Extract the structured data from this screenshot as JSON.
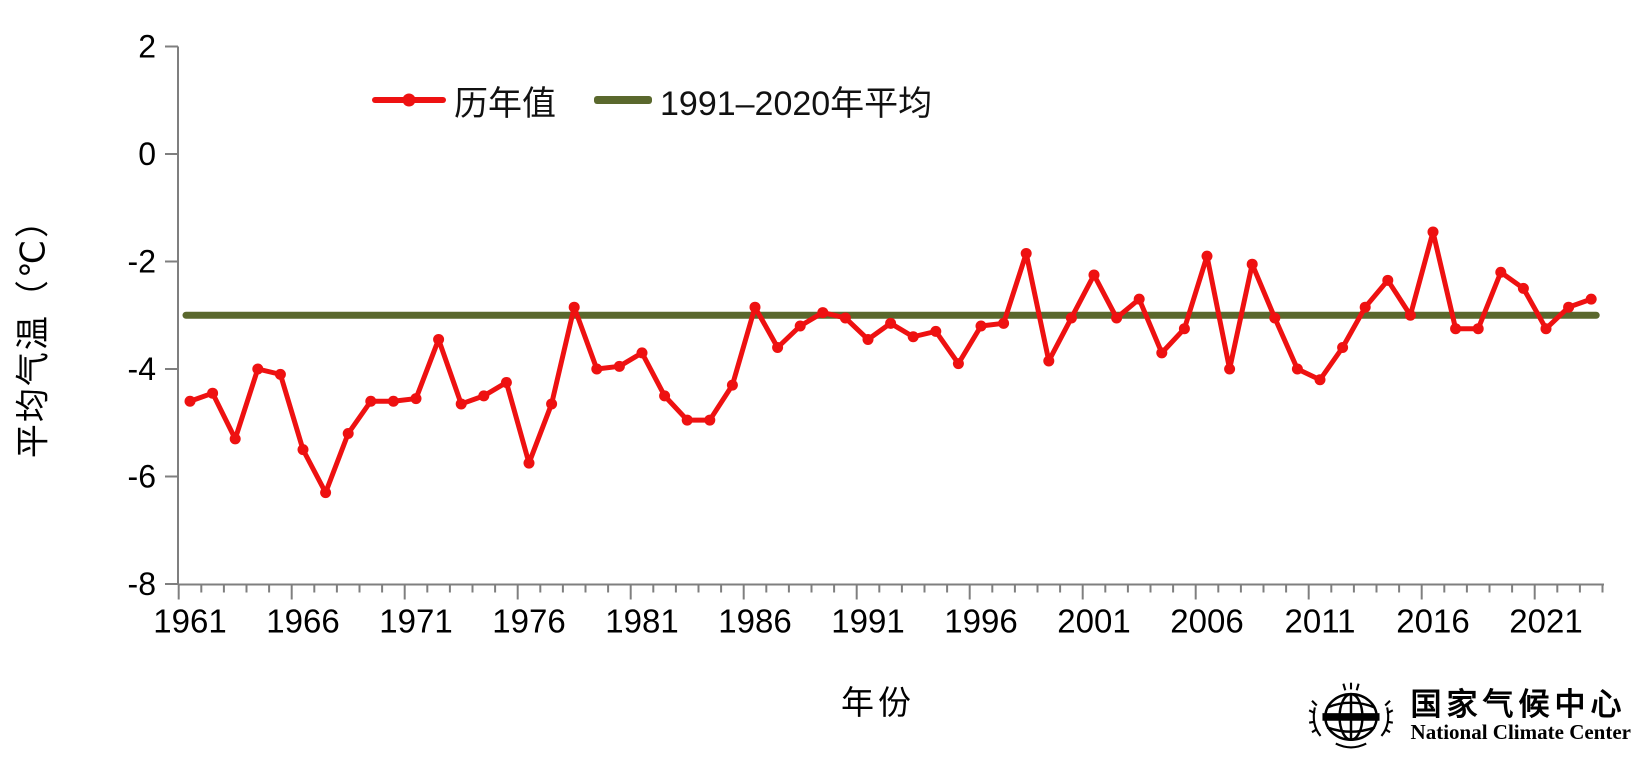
{
  "legend": {
    "annual_label": "历年值",
    "mean_label": "1991–2020年平均"
  },
  "axes": {
    "y_title": "平均气温（℃）",
    "x_title": "年份",
    "y_tick_labels": [
      "2",
      "0",
      "-2",
      "-4",
      "-6",
      "-8"
    ],
    "x_tick_labels": [
      "1961",
      "1966",
      "1971",
      "1976",
      "1981",
      "1986",
      "1991",
      "1996",
      "2001",
      "2006",
      "2011",
      "2016",
      "2021"
    ]
  },
  "footer": {
    "logo_cn": "国家气候中心",
    "logo_en": "National Climate Center"
  },
  "colors": {
    "series_red": "#ee1111",
    "mean_green": "#5a682d",
    "axis_gray": "#7f7f7f",
    "text_black": "#000000"
  },
  "chart_data": {
    "type": "line",
    "title": "",
    "xlabel": "年份",
    "ylabel": "平均气温（℃）",
    "xlim": [
      1961,
      2024
    ],
    "ylim": [
      -8,
      2
    ],
    "y_ticks": [
      2,
      0,
      -2,
      -4,
      -6,
      -8
    ],
    "x_major_ticks": [
      1961,
      1966,
      1971,
      1976,
      1981,
      1986,
      1991,
      1996,
      2001,
      2006,
      2011,
      2016,
      2021
    ],
    "grid": false,
    "legend_position": "top",
    "x": [
      1961,
      1962,
      1963,
      1964,
      1965,
      1966,
      1967,
      1968,
      1969,
      1970,
      1971,
      1972,
      1973,
      1974,
      1975,
      1976,
      1977,
      1978,
      1979,
      1980,
      1981,
      1982,
      1983,
      1984,
      1985,
      1986,
      1987,
      1988,
      1989,
      1990,
      1991,
      1992,
      1993,
      1994,
      1995,
      1996,
      1997,
      1998,
      1999,
      2000,
      2001,
      2002,
      2003,
      2004,
      2005,
      2006,
      2007,
      2008,
      2009,
      2010,
      2011,
      2012,
      2013,
      2014,
      2015,
      2016,
      2017,
      2018,
      2019,
      2020,
      2021,
      2022,
      2023
    ],
    "series": [
      {
        "name": "历年值",
        "type": "line-markers",
        "color": "#ee1111",
        "values": [
          -4.6,
          -4.45,
          -5.3,
          -4.0,
          -4.1,
          -5.5,
          -6.3,
          -5.2,
          -4.6,
          -4.6,
          -4.55,
          -3.45,
          -4.65,
          -4.5,
          -4.25,
          -5.75,
          -4.65,
          -2.85,
          -4.0,
          -3.95,
          -3.7,
          -4.5,
          -4.95,
          -4.95,
          -4.3,
          -2.85,
          -3.6,
          -3.2,
          -2.95,
          -3.05,
          -3.45,
          -3.15,
          -3.4,
          -3.3,
          -3.9,
          -3.2,
          -3.15,
          -1.85,
          -3.85,
          -3.05,
          -2.25,
          -3.05,
          -2.7,
          -3.7,
          -3.25,
          -1.9,
          -4.0,
          -2.05,
          -3.05,
          -4.0,
          -4.2,
          -3.6,
          -2.85,
          -2.35,
          -3.0,
          -1.45,
          -3.25,
          -3.25,
          -2.2,
          -2.5,
          -3.25,
          -2.85,
          -2.7
        ]
      },
      {
        "name": "1991–2020年平均",
        "type": "constant-line",
        "color": "#5a682d",
        "constant": -3.0
      }
    ]
  }
}
